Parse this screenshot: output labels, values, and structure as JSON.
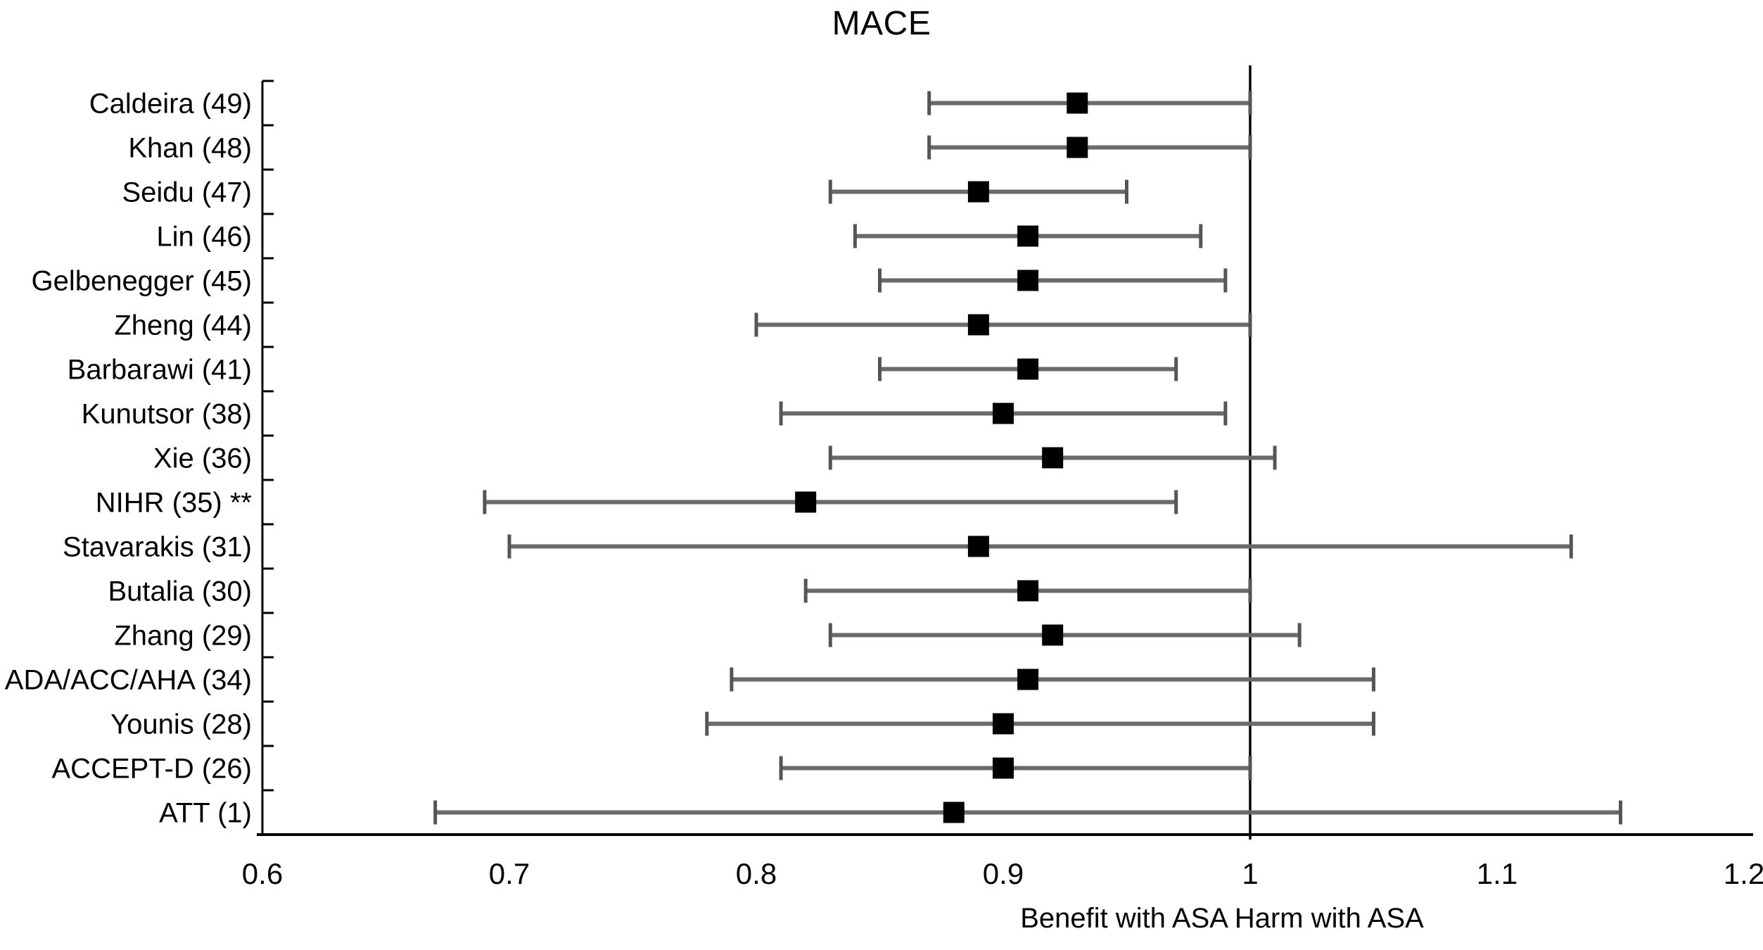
{
  "title": "MACE",
  "x_axis_title": "Benefit with ASA Harm with ASA",
  "chart_data": {
    "type": "scatter",
    "subtype": "forest-plot",
    "title": "MACE",
    "xlabel": "Benefit with ASA Harm with ASA",
    "xlim": [
      0.6,
      1.2
    ],
    "reference_line": 1.0,
    "grid": false,
    "legend": "none",
    "x_ticks": [
      0.6,
      0.7,
      0.8,
      0.9,
      1.0,
      1.1,
      1.2
    ],
    "x_tick_labels": [
      "0.6",
      "0.7",
      "0.8",
      "0.9",
      "1",
      "1.1",
      "1.2"
    ],
    "studies": [
      {
        "label": "Caldeira (49)",
        "estimate": 0.93,
        "ci_lower": 0.87,
        "ci_upper": 1.0
      },
      {
        "label": "Khan (48)",
        "estimate": 0.93,
        "ci_lower": 0.87,
        "ci_upper": 1.0
      },
      {
        "label": "Seidu (47)",
        "estimate": 0.89,
        "ci_lower": 0.83,
        "ci_upper": 0.95
      },
      {
        "label": "Lin (46)",
        "estimate": 0.91,
        "ci_lower": 0.84,
        "ci_upper": 0.98
      },
      {
        "label": "Gelbenegger (45)",
        "estimate": 0.91,
        "ci_lower": 0.85,
        "ci_upper": 0.99
      },
      {
        "label": "Zheng (44)",
        "estimate": 0.89,
        "ci_lower": 0.8,
        "ci_upper": 1.0
      },
      {
        "label": "Barbarawi (41)",
        "estimate": 0.91,
        "ci_lower": 0.85,
        "ci_upper": 0.97
      },
      {
        "label": "Kunutsor (38)",
        "estimate": 0.9,
        "ci_lower": 0.81,
        "ci_upper": 0.99
      },
      {
        "label": "Xie (36)",
        "estimate": 0.92,
        "ci_lower": 0.83,
        "ci_upper": 1.01
      },
      {
        "label": "NIHR (35) **",
        "estimate": 0.82,
        "ci_lower": 0.69,
        "ci_upper": 0.97
      },
      {
        "label": "Stavarakis (31)",
        "estimate": 0.89,
        "ci_lower": 0.7,
        "ci_upper": 1.13
      },
      {
        "label": "Butalia (30)",
        "estimate": 0.91,
        "ci_lower": 0.82,
        "ci_upper": 1.0
      },
      {
        "label": "Zhang (29)",
        "estimate": 0.92,
        "ci_lower": 0.83,
        "ci_upper": 1.02
      },
      {
        "label": "ADA/ACC/AHA (34)",
        "estimate": 0.91,
        "ci_lower": 0.79,
        "ci_upper": 1.05
      },
      {
        "label": "Younis (28)",
        "estimate": 0.9,
        "ci_lower": 0.78,
        "ci_upper": 1.05
      },
      {
        "label": "ACCEPT-D (26)",
        "estimate": 0.9,
        "ci_lower": 0.81,
        "ci_upper": 1.0
      },
      {
        "label": "ATT (1)",
        "estimate": 0.88,
        "ci_lower": 0.67,
        "ci_upper": 1.15
      }
    ],
    "colors": {
      "marker": "#000000",
      "ci_line": "#6a6a6a",
      "ci_cap": "#555555",
      "axis": "#000000",
      "reference_line": "#000000",
      "text": "#000000",
      "background": "#ffffff"
    }
  }
}
